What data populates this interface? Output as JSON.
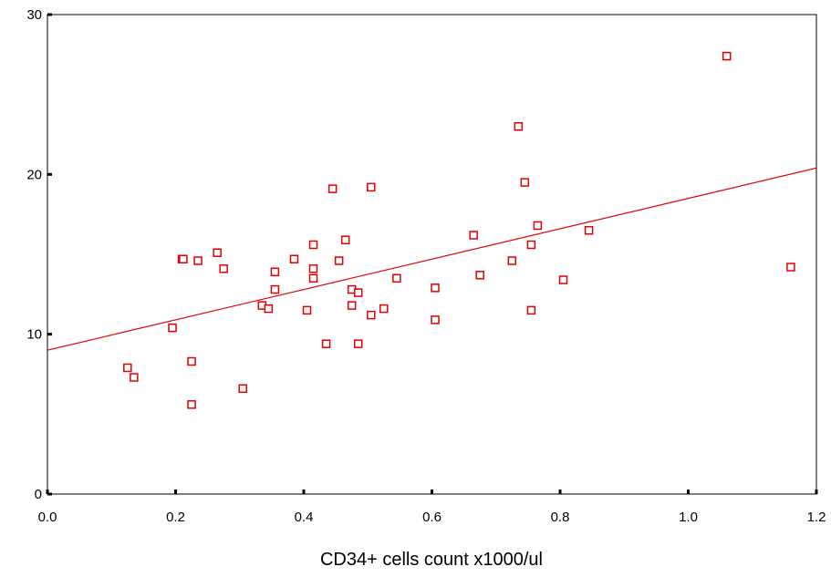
{
  "chart_data": {
    "type": "scatter",
    "title": "",
    "xlabel": "CD34+ cells count x1000/ul",
    "ylabel": "",
    "xlim": [
      0,
      1.2
    ],
    "ylim": [
      0,
      30
    ],
    "x_ticks": [
      0.0,
      0.2,
      0.4,
      0.6,
      0.8,
      1.0,
      1.2
    ],
    "x_tick_labels": [
      "0.0",
      "0.2",
      "0.4",
      "0.6",
      "0.8",
      "1.0",
      "1.2"
    ],
    "y_ticks": [
      0,
      10,
      20,
      30
    ],
    "y_tick_labels": [
      "0",
      "10",
      "20",
      "30"
    ],
    "grid": false,
    "legend": "none",
    "marker": "open-square",
    "colors": {
      "points": "#e00000",
      "fit_line": "#e00000",
      "axes": "#000000"
    },
    "series": [
      {
        "points": [
          [
            0.125,
            7.9
          ],
          [
            0.135,
            7.3
          ],
          [
            0.195,
            10.4
          ],
          [
            0.21,
            14.7
          ],
          [
            0.212,
            14.7
          ],
          [
            0.225,
            8.3
          ],
          [
            0.225,
            5.6
          ],
          [
            0.235,
            14.6
          ],
          [
            0.265,
            15.1
          ],
          [
            0.275,
            14.1
          ],
          [
            0.305,
            6.6
          ],
          [
            0.335,
            11.8
          ],
          [
            0.345,
            11.6
          ],
          [
            0.355,
            13.9
          ],
          [
            0.355,
            12.8
          ],
          [
            0.385,
            14.7
          ],
          [
            0.405,
            11.5
          ],
          [
            0.415,
            15.6
          ],
          [
            0.415,
            14.1
          ],
          [
            0.415,
            13.5
          ],
          [
            0.435,
            9.4
          ],
          [
            0.445,
            19.1
          ],
          [
            0.455,
            14.6
          ],
          [
            0.465,
            15.9
          ],
          [
            0.475,
            12.8
          ],
          [
            0.475,
            11.8
          ],
          [
            0.485,
            12.6
          ],
          [
            0.485,
            9.4
          ],
          [
            0.505,
            19.2
          ],
          [
            0.505,
            11.2
          ],
          [
            0.525,
            11.6
          ],
          [
            0.545,
            13.5
          ],
          [
            0.605,
            12.9
          ],
          [
            0.605,
            10.9
          ],
          [
            0.665,
            16.2
          ],
          [
            0.675,
            13.7
          ],
          [
            0.725,
            14.6
          ],
          [
            0.735,
            23.0
          ],
          [
            0.745,
            19.5
          ],
          [
            0.755,
            15.6
          ],
          [
            0.755,
            11.5
          ],
          [
            0.765,
            16.8
          ],
          [
            0.805,
            13.4
          ],
          [
            0.845,
            16.5
          ],
          [
            1.06,
            27.4
          ],
          [
            1.16,
            14.2
          ]
        ]
      }
    ],
    "fit_line": {
      "x": [
        0.0,
        1.2
      ],
      "y": [
        9.0,
        20.4
      ]
    }
  }
}
